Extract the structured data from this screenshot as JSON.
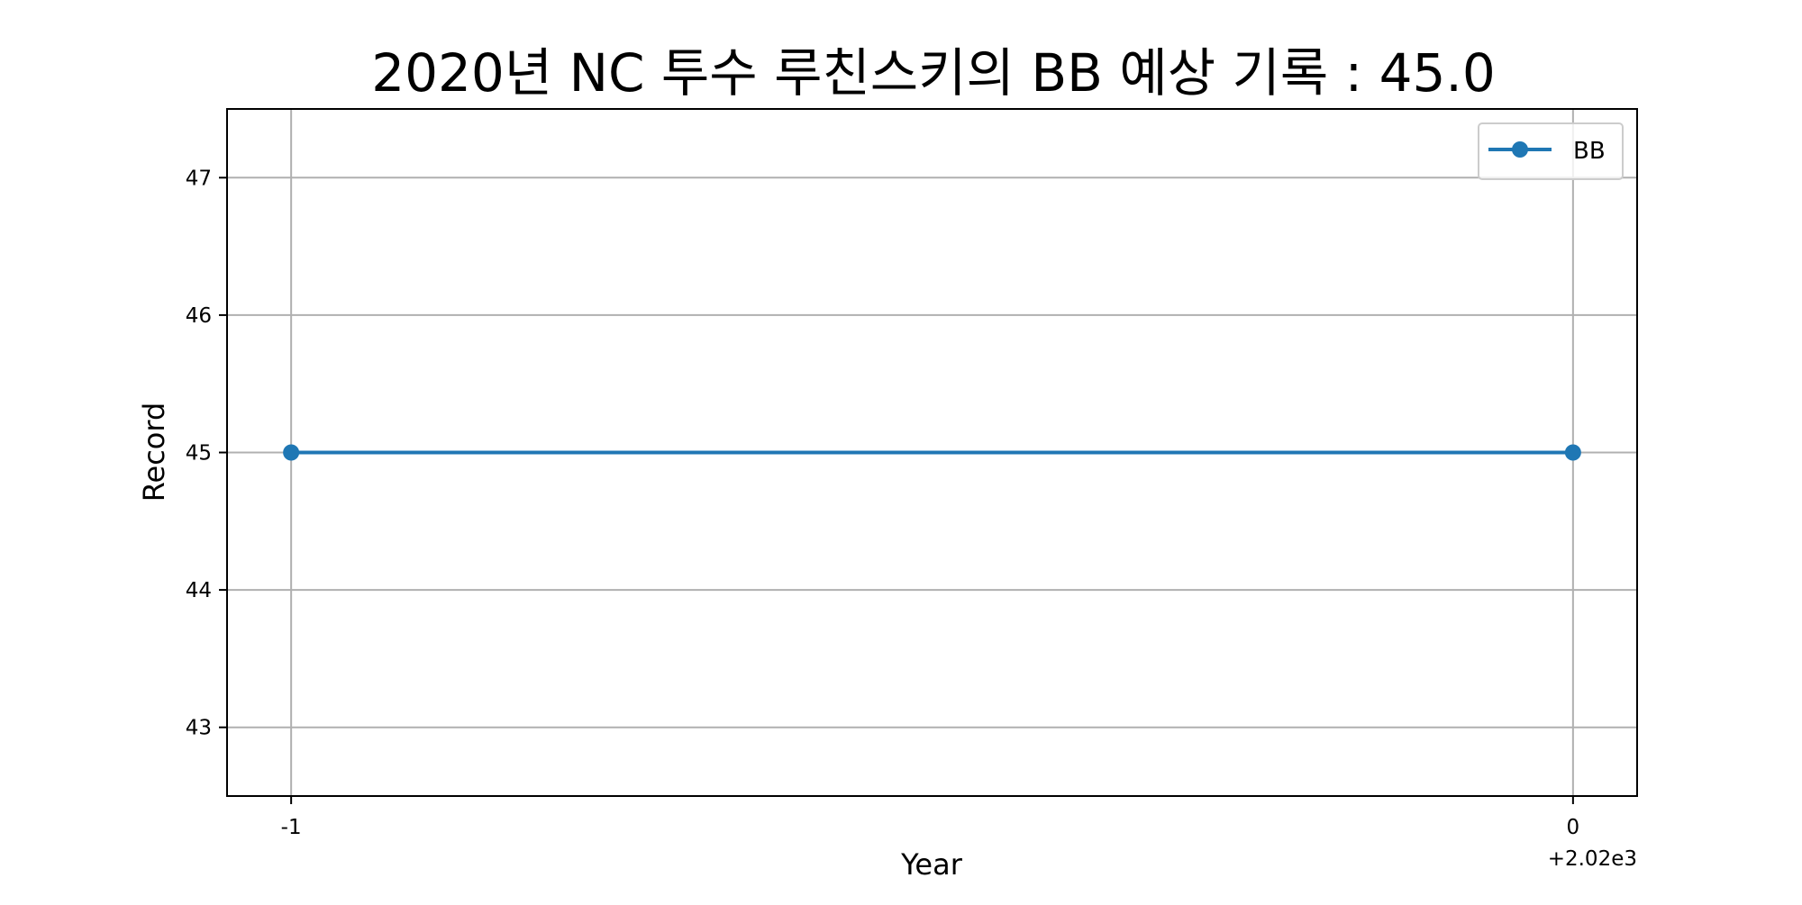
{
  "chart_data": {
    "type": "line",
    "title": "2020년 NC 투수 루친스키의 BB 예상 기록 : 45.0",
    "xlabel": "Year",
    "ylabel": "Record",
    "x_offset_label": "+2.02e3",
    "x": [
      2019,
      2020
    ],
    "x_ticks": [
      -1,
      0
    ],
    "x_tick_labels": [
      "-1",
      "0"
    ],
    "xlim": [
      2018.95,
      2020.05
    ],
    "y_ticks": [
      43,
      44,
      45,
      46,
      47
    ],
    "y_tick_labels": [
      "43",
      "44",
      "45",
      "46",
      "47"
    ],
    "ylim": [
      42.5,
      47.5
    ],
    "grid": true,
    "legend_position": "top-right",
    "series": [
      {
        "name": "BB",
        "values": [
          45,
          45
        ],
        "color": "#1f77b4",
        "marker": "circle"
      }
    ],
    "colors": {
      "series": "#1f77b4",
      "grid": "#b0b0b0",
      "frame": "#000000",
      "legend_border": "#cccccc"
    }
  }
}
